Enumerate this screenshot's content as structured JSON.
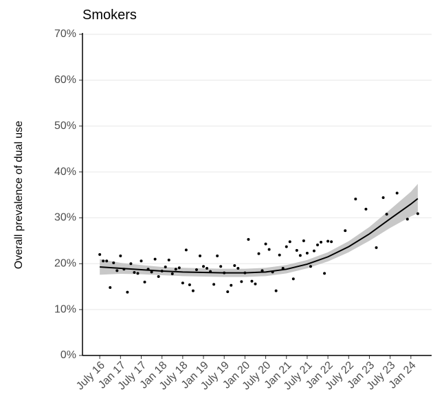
{
  "chart_data": {
    "type": "scatter",
    "title": "Smokers",
    "ylabel": "Overall prevalence of dual use",
    "ylim": [
      0,
      70
    ],
    "yticks": [
      {
        "value": 0,
        "label": "0%"
      },
      {
        "value": 10,
        "label": "10%"
      },
      {
        "value": 20,
        "label": "20%"
      },
      {
        "value": 30,
        "label": "30%"
      },
      {
        "value": 40,
        "label": "40%"
      },
      {
        "value": 50,
        "label": "50%"
      },
      {
        "value": 60,
        "label": "60%"
      },
      {
        "value": 70,
        "label": "70%"
      }
    ],
    "xlim": [
      "2016-02",
      "2024-07"
    ],
    "xticks": [
      {
        "value": "2016-07",
        "label": "July 16"
      },
      {
        "value": "2017-01",
        "label": "Jan 17"
      },
      {
        "value": "2017-07",
        "label": "July 17"
      },
      {
        "value": "2018-01",
        "label": "Jan 18"
      },
      {
        "value": "2018-07",
        "label": "July 18"
      },
      {
        "value": "2019-01",
        "label": "Jan 19"
      },
      {
        "value": "2019-07",
        "label": "July 19"
      },
      {
        "value": "2020-01",
        "label": "Jan 20"
      },
      {
        "value": "2020-07",
        "label": "July 20"
      },
      {
        "value": "2021-01",
        "label": "Jan 21"
      },
      {
        "value": "2021-07",
        "label": "July 21"
      },
      {
        "value": "2022-01",
        "label": "Jan 22"
      },
      {
        "value": "2022-07",
        "label": "July 22"
      },
      {
        "value": "2023-01",
        "label": "Jan 23"
      },
      {
        "value": "2023-07",
        "label": "July 23"
      },
      {
        "value": "2024-01",
        "label": "Jan 24"
      }
    ],
    "grid": true,
    "series": [
      {
        "color": "#000000",
        "x": [
          "2016-07",
          "2016-08",
          "2016-09",
          "2016-10",
          "2016-11",
          "2016-12",
          "2017-01",
          "2017-02",
          "2017-03",
          "2017-04",
          "2017-05",
          "2017-06",
          "2017-07",
          "2017-08",
          "2017-09",
          "2017-10",
          "2017-11",
          "2017-12",
          "2018-01",
          "2018-02",
          "2018-03",
          "2018-04",
          "2018-05",
          "2018-06",
          "2018-07",
          "2018-08",
          "2018-09",
          "2018-10",
          "2018-11",
          "2018-12",
          "2019-01",
          "2019-02",
          "2019-03",
          "2019-04",
          "2019-05",
          "2019-06",
          "2019-07",
          "2019-08",
          "2019-09",
          "2019-10",
          "2019-11",
          "2019-12",
          "2020-01",
          "2020-02",
          "2020-03",
          "2020-04",
          "2020-05",
          "2020-06",
          "2020-07",
          "2020-08",
          "2020-09",
          "2020-10",
          "2020-11",
          "2020-12",
          "2021-01",
          "2021-02",
          "2021-03",
          "2021-04",
          "2021-05",
          "2021-06",
          "2021-07",
          "2021-08",
          "2021-09",
          "2021-10",
          "2021-11",
          "2021-12",
          "2022-01",
          "2022-02",
          "2022-06",
          "2022-09",
          "2022-12",
          "2023-03",
          "2023-05",
          "2023-06",
          "2023-09",
          "2023-12",
          "2024-03"
        ],
        "values": [
          22.0,
          20.6,
          20.6,
          14.8,
          20.2,
          18.5,
          21.7,
          18.8,
          13.8,
          20.0,
          18.1,
          17.9,
          20.6,
          16.0,
          18.8,
          18.2,
          21.0,
          17.2,
          18.4,
          19.3,
          20.8,
          17.8,
          18.8,
          19.1,
          15.8,
          23.0,
          15.4,
          14.1,
          18.7,
          21.7,
          19.4,
          19.0,
          18.3,
          15.5,
          21.7,
          19.4,
          18.0,
          13.9,
          15.3,
          19.6,
          19.0,
          16.1,
          18.0,
          25.3,
          16.2,
          15.6,
          22.2,
          18.5,
          24.3,
          23.1,
          18.2,
          14.1,
          21.9,
          19.0,
          23.7,
          24.8,
          16.7,
          22.9,
          21.8,
          25.0,
          22.3,
          19.4,
          22.8,
          24.1,
          24.7,
          17.9,
          24.9,
          24.8,
          27.2,
          34.1,
          31.9,
          23.5,
          34.4,
          30.8,
          35.4,
          29.7,
          30.9
        ]
      }
    ],
    "smooth": {
      "color": "#000000",
      "band_color": "#c8c8c8",
      "x": [
        "2016-07",
        "2017-01",
        "2017-07",
        "2018-01",
        "2018-07",
        "2019-01",
        "2019-07",
        "2020-01",
        "2020-07",
        "2021-01",
        "2021-07",
        "2022-01",
        "2022-07",
        "2023-01",
        "2023-07",
        "2024-01",
        "2024-03"
      ],
      "values": [
        19.3,
        19.0,
        18.7,
        18.4,
        18.2,
        18.1,
        18.0,
        18.0,
        18.2,
        18.8,
        19.9,
        21.5,
        23.7,
        26.5,
        29.8,
        33.0,
        34.2
      ],
      "lower": [
        17.6,
        17.8,
        17.7,
        17.5,
        17.3,
        17.2,
        17.1,
        17.1,
        17.3,
        17.9,
        19.0,
        20.5,
        22.5,
        25.0,
        27.8,
        30.3,
        31.0
      ],
      "upper": [
        21.0,
        20.2,
        19.7,
        19.3,
        19.1,
        19.0,
        18.9,
        18.9,
        19.1,
        19.7,
        20.8,
        22.5,
        24.9,
        28.0,
        31.8,
        35.7,
        37.4
      ]
    }
  }
}
